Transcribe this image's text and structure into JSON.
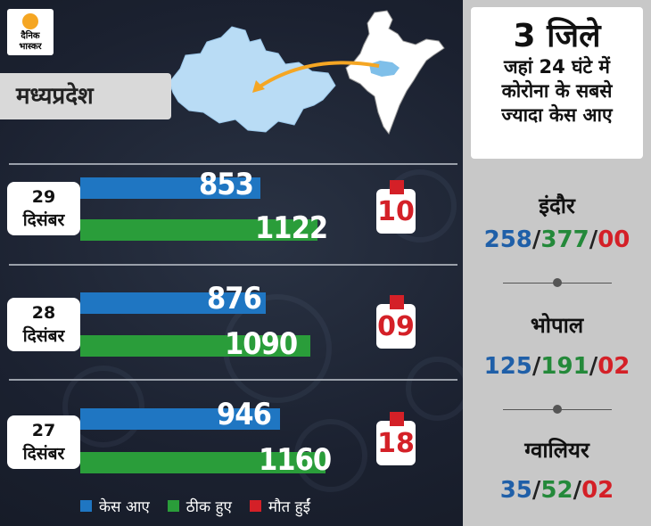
{
  "logo": {
    "line1": "दैनिक",
    "line2": "भास्कर"
  },
  "state_label": "मध्यप्रदेश",
  "panel": {
    "heading_line1": "3 जिले",
    "heading_lines": [
      "जहां 24 घंटे में",
      "कोरोना के सबसे",
      "ज्यादा केस आए"
    ],
    "cities": [
      {
        "name": "इंदौर",
        "cases": "258",
        "recovered": "377",
        "deaths": "00"
      },
      {
        "name": "भोपाल",
        "cases": "125",
        "recovered": "191",
        "deaths": "02"
      },
      {
        "name": "ग्वालियर",
        "cases": "35",
        "recovered": "52",
        "deaths": "02"
      }
    ],
    "slash": "/"
  },
  "legend": [
    {
      "label": "केस आए",
      "color": "#1f76c2"
    },
    {
      "label": "ठीक हुए",
      "color": "#2a9d3a"
    },
    {
      "label": "मौत हुईं",
      "color": "#d42027"
    }
  ],
  "chart_data": {
    "type": "bar",
    "categories": [
      "29 दिसंबर",
      "28 दिसंबर",
      "27 दिसंबर"
    ],
    "dates": [
      {
        "day": "29",
        "month": "दिसंबर",
        "cases": 853,
        "recovered": 1122,
        "deaths": "10"
      },
      {
        "day": "28",
        "month": "दिसंबर",
        "cases": 876,
        "recovered": 1090,
        "deaths": "09"
      },
      {
        "day": "27",
        "month": "दिसंबर",
        "cases": 946,
        "recovered": 1160,
        "deaths": "18"
      }
    ],
    "series": [
      {
        "name": "केस आए",
        "values": [
          853,
          876,
          946
        ],
        "color": "#1f76c2"
      },
      {
        "name": "ठीक हुए",
        "values": [
          1122,
          1090,
          1160
        ],
        "color": "#2a9d3a"
      },
      {
        "name": "मौत हुईं",
        "values": [
          10,
          9,
          18
        ],
        "color": "#d42027"
      }
    ]
  }
}
